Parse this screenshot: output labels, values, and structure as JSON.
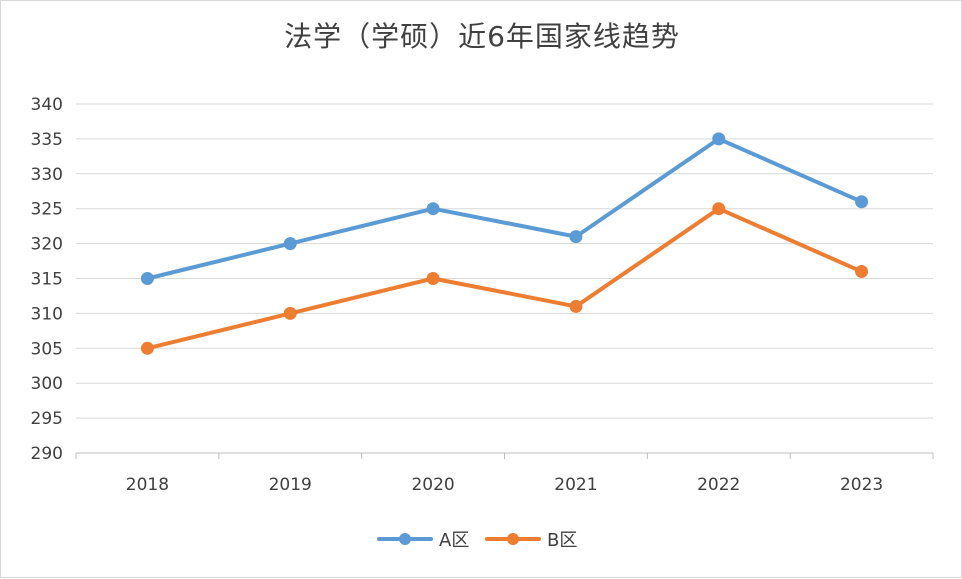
{
  "chart_data": {
    "type": "line",
    "title": "法学（学硕）近6年国家线趋势",
    "xlabel": "",
    "ylabel": "",
    "categories": [
      "2018",
      "2019",
      "2020",
      "2021",
      "2022",
      "2023"
    ],
    "ylim": [
      290,
      340
    ],
    "yticks": [
      290,
      295,
      300,
      305,
      310,
      315,
      320,
      325,
      330,
      335,
      340
    ],
    "grid": true,
    "legend_position": "bottom",
    "series": [
      {
        "name": "A区",
        "color": "#5b9bd5",
        "values": [
          315,
          320,
          325,
          321,
          335,
          326
        ]
      },
      {
        "name": "B区",
        "color": "#ed7d31",
        "values": [
          305,
          310,
          315,
          311,
          325,
          316
        ]
      }
    ]
  }
}
